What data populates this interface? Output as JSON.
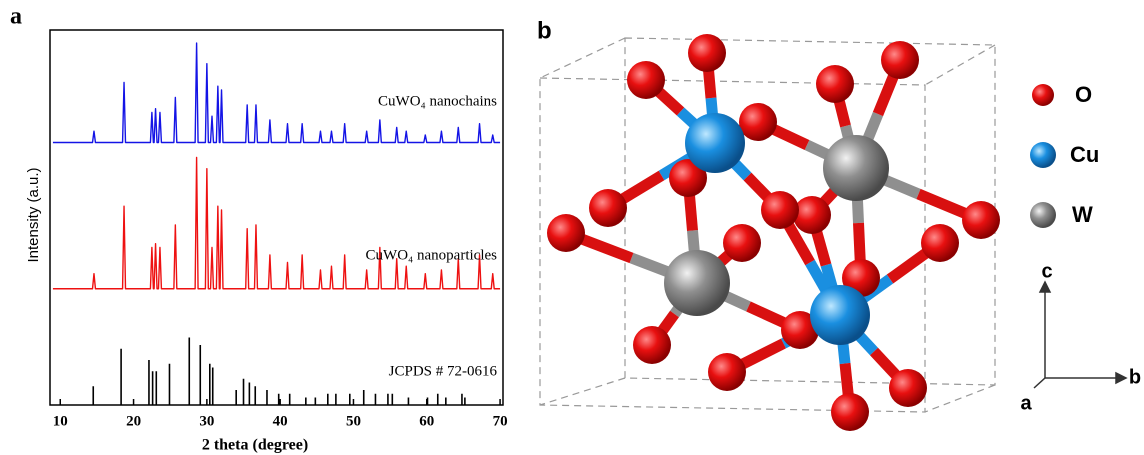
{
  "chart_data": {
    "type": "line",
    "panel_label": "a",
    "xlabel": "2 theta (degree)",
    "ylabel": "Intensity (a.u.)",
    "xlim": [
      8.6,
      70.4
    ],
    "xticks": [
      10,
      20,
      30,
      40,
      50,
      60,
      70
    ],
    "ylim": [
      0,
      100
    ],
    "x": [
      9,
      14.4,
      14.6,
      14.8,
      18.5,
      18.7,
      18.9,
      22.3,
      22.5,
      22.7,
      22.8,
      23.0,
      23.2,
      23.4,
      23.6,
      23.8,
      25.5,
      25.7,
      25.9,
      28.4,
      28.6,
      28.8,
      29.8,
      30.0,
      30.2,
      30.5,
      30.7,
      30.9,
      31.3,
      31.5,
      31.7,
      31.8,
      32.0,
      32.2,
      35.3,
      35.5,
      35.7,
      36.5,
      36.7,
      36.9,
      38.4,
      38.6,
      38.8,
      40.8,
      41.0,
      41.2,
      42.8,
      43.0,
      43.2,
      45.3,
      45.5,
      45.7,
      46.8,
      47.0,
      47.2,
      48.6,
      48.8,
      49.0,
      51.6,
      51.8,
      52.0,
      53.4,
      53.6,
      53.8,
      55.7,
      55.9,
      56.1,
      57.0,
      57.2,
      57.4,
      59.6,
      59.8,
      60.0,
      61.8,
      62.0,
      62.2,
      64.1,
      64.3,
      64.5,
      67.0,
      67.2,
      67.4,
      68.8,
      69.0,
      69.2,
      70
    ],
    "series": [
      {
        "name": "CuWO₄ nanochains",
        "color": "#1414e6",
        "values": [
          70,
          70,
          73,
          70,
          70,
          86,
          70,
          70,
          78,
          70,
          70,
          79,
          70,
          70,
          78,
          70,
          70,
          82,
          70,
          70,
          96.5,
          70,
          70,
          91,
          70,
          70,
          77,
          70,
          70,
          85,
          70,
          70,
          84,
          70,
          70,
          80,
          70,
          70,
          80,
          70,
          70,
          76,
          70,
          70,
          75,
          70,
          70,
          75,
          70,
          70,
          73,
          70,
          70,
          73,
          70,
          70,
          75,
          70,
          70,
          73,
          70,
          70,
          76,
          70,
          70,
          74,
          70,
          70,
          73,
          70,
          70,
          72,
          70,
          70,
          73,
          70,
          70,
          74,
          70,
          70,
          75,
          70,
          70,
          72,
          70,
          70
        ]
      },
      {
        "name": "CuWO₄ nanoparticles",
        "color": "#ee1111",
        "values": [
          31,
          31,
          35,
          31,
          31,
          53,
          31,
          31,
          42,
          31,
          31,
          43,
          31,
          31,
          42,
          31,
          31,
          48,
          31,
          31,
          66,
          31,
          31,
          63,
          31,
          31,
          42,
          31,
          31,
          53,
          31,
          31,
          52,
          31,
          31,
          47,
          31,
          31,
          48,
          31,
          31,
          40,
          31,
          31,
          38,
          31,
          31,
          40,
          31,
          31,
          36,
          31,
          31,
          37,
          31,
          31,
          40,
          31,
          31,
          36,
          31,
          31,
          42,
          31,
          31,
          39,
          31,
          31,
          37,
          31,
          31,
          35,
          31,
          31,
          36,
          31,
          31,
          39,
          31,
          31,
          40,
          31,
          31,
          35,
          31,
          31
        ]
      },
      {
        "name": "JCPDS # 72-0616",
        "color": "#000000",
        "type": "stick",
        "x": [
          14.5,
          18.3,
          22.1,
          22.6,
          23.1,
          24.9,
          27.6,
          29.1,
          30.4,
          30.8,
          34.0,
          35.0,
          35.8,
          36.6,
          38.2,
          39.8,
          41.3,
          43.5,
          44.8,
          46.5,
          47.6,
          49.5,
          51.4,
          53.0,
          54.7,
          55.3,
          57.5,
          60.1,
          61.5,
          62.6,
          64.8,
          65.2
        ],
        "values": [
          5,
          15,
          12,
          9,
          9,
          11,
          18,
          16,
          11,
          10,
          4,
          7,
          6,
          5,
          4,
          3,
          3,
          2,
          2,
          3,
          3,
          3,
          4,
          3,
          3,
          3,
          2,
          2,
          3,
          2,
          3,
          2
        ]
      }
    ]
  },
  "panel_b": {
    "label": "b",
    "legend": [
      "O",
      "Cu",
      "W"
    ],
    "axes": [
      "c",
      "b",
      "a"
    ]
  }
}
